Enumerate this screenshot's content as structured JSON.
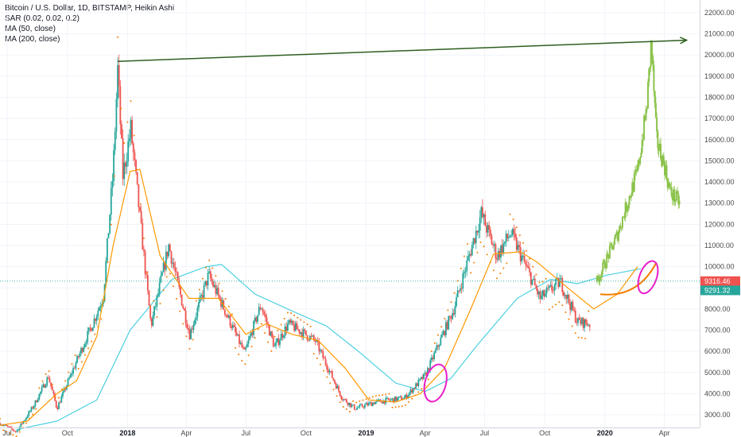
{
  "legend": {
    "title": "Bitcoin / U.S. Dollar, 1D, BITSTAMP, Heikin Ashi",
    "sar": "SAR (0.02, 0.02, 0.2)",
    "ma50": "MA (50, close)",
    "ma200": "MA (200, close)"
  },
  "colors": {
    "up": "#26a69a",
    "down": "#ef5350",
    "projection": "#8bc34a",
    "sar": "#f57c00",
    "ma50": "#ff9800",
    "ma200": "#4dd0e1",
    "trendline": "#2e5e1e",
    "circle": "#e91ec9",
    "price_line": "#26a69a",
    "badge_red": "#ef5350",
    "badge_green": "#26a69a"
  },
  "price_badges": {
    "red": "9316.46",
    "green": "9291.32"
  },
  "chart_data": {
    "type": "candlestick",
    "title": "Bitcoin / U.S. Dollar, 1D, BITSTAMP, Heikin Ashi",
    "x_ticks": [
      "Jul",
      "Oct",
      "2018",
      "Apr",
      "Jul",
      "Oct",
      "2019",
      "Apr",
      "Jul",
      "Oct",
      "2020",
      "Apr"
    ],
    "y_ticks": [
      3000,
      4000,
      5000,
      6000,
      7000,
      8000,
      9000,
      10000,
      11000,
      12000,
      13000,
      14000,
      15000,
      16000,
      17000,
      18000,
      19000,
      20000,
      21000,
      22000
    ],
    "y_tick_labels": [
      "3000.00",
      "4000.00",
      "5000.00",
      "6000.00",
      "7000.00",
      "8000.00",
      "9000.00",
      "10000.00",
      "11000.00",
      "12000.00",
      "13000.00",
      "14000.00",
      "15000.00",
      "16000.00",
      "17000.00",
      "18000.00",
      "19000.00",
      "20000.00",
      "21000.00",
      "22000.00"
    ],
    "ylim": [
      2400,
      22600
    ],
    "x_range": [
      "2017-06-20",
      "2020-05-25"
    ],
    "last_price": 9316.46,
    "price_series": [
      [
        "2017-06-20",
        2600
      ],
      [
        "2017-07-15",
        2200
      ],
      [
        "2017-08-10",
        3400
      ],
      [
        "2017-09-02",
        4800
      ],
      [
        "2017-09-15",
        3300
      ],
      [
        "2017-10-20",
        5900
      ],
      [
        "2017-11-10",
        7400
      ],
      [
        "2017-11-25",
        8600
      ],
      [
        "2017-12-10",
        14500
      ],
      [
        "2017-12-17",
        19300
      ],
      [
        "2017-12-25",
        14300
      ],
      [
        "2018-01-06",
        16500
      ],
      [
        "2018-02-06",
        7200
      ],
      [
        "2018-03-05",
        11000
      ],
      [
        "2018-04-06",
        6800
      ],
      [
        "2018-05-05",
        9600
      ],
      [
        "2018-06-29",
        5900
      ],
      [
        "2018-07-24",
        8200
      ],
      [
        "2018-08-14",
        6200
      ],
      [
        "2018-09-04",
        7300
      ],
      [
        "2018-10-15",
        6500
      ],
      [
        "2018-11-25",
        3800
      ],
      [
        "2018-12-15",
        3300
      ],
      [
        "2019-01-15",
        3600
      ],
      [
        "2019-03-01",
        3800
      ],
      [
        "2019-04-02",
        4900
      ],
      [
        "2019-05-15",
        8000
      ],
      [
        "2019-06-26",
        12500
      ],
      [
        "2019-07-20",
        10500
      ],
      [
        "2019-08-10",
        11600
      ],
      [
        "2019-09-24",
        8500
      ],
      [
        "2019-10-25",
        9300
      ],
      [
        "2019-11-20",
        7400
      ],
      [
        "2019-12-10",
        7300
      ]
    ],
    "projection_series": [
      [
        "2019-12-20",
        9300
      ],
      [
        "2020-01-20",
        11500
      ],
      [
        "2020-02-20",
        14500
      ],
      [
        "2020-03-05",
        17500
      ],
      [
        "2020-03-12",
        20600
      ],
      [
        "2020-03-20",
        16000
      ],
      [
        "2020-04-01",
        14800
      ],
      [
        "2020-04-10",
        13500
      ],
      [
        "2020-04-25",
        13000
      ]
    ],
    "ma50": [
      [
        "2017-06-20",
        2500
      ],
      [
        "2017-08-01",
        2700
      ],
      [
        "2017-09-15",
        4000
      ],
      [
        "2017-10-15",
        4600
      ],
      [
        "2017-11-15",
        6700
      ],
      [
        "2017-12-10",
        11000
      ],
      [
        "2018-01-05",
        14500
      ],
      [
        "2018-01-20",
        14600
      ],
      [
        "2018-02-20",
        10500
      ],
      [
        "2018-04-05",
        8500
      ],
      [
        "2018-05-20",
        8500
      ],
      [
        "2018-07-01",
        6800
      ],
      [
        "2018-08-01",
        7300
      ],
      [
        "2018-09-10",
        6800
      ],
      [
        "2018-10-20",
        6500
      ],
      [
        "2018-11-30",
        5200
      ],
      [
        "2019-01-05",
        3700
      ],
      [
        "2019-02-15",
        3600
      ],
      [
        "2019-03-25",
        4000
      ],
      [
        "2019-05-01",
        5200
      ],
      [
        "2019-06-10",
        8000
      ],
      [
        "2019-07-15",
        10600
      ],
      [
        "2019-08-25",
        10700
      ],
      [
        "2019-09-20",
        10200
      ],
      [
        "2019-11-05",
        9000
      ],
      [
        "2019-12-15",
        8000
      ],
      [
        "2020-01-20",
        8700
      ],
      [
        "2020-02-20",
        10000
      ]
    ],
    "ma200": [
      [
        "2017-07-15",
        2300
      ],
      [
        "2017-09-15",
        2700
      ],
      [
        "2017-11-15",
        3700
      ],
      [
        "2018-01-05",
        7000
      ],
      [
        "2018-03-10",
        9400
      ],
      [
        "2018-05-01",
        10000
      ],
      [
        "2018-05-25",
        10100
      ],
      [
        "2018-07-15",
        8700
      ],
      [
        "2018-09-10",
        7900
      ],
      [
        "2018-11-01",
        7200
      ],
      [
        "2018-12-20",
        6000
      ],
      [
        "2019-02-15",
        4500
      ],
      [
        "2019-04-01",
        4100
      ],
      [
        "2019-05-10",
        4700
      ],
      [
        "2019-06-20",
        6300
      ],
      [
        "2019-08-20",
        8500
      ],
      [
        "2019-10-10",
        9400
      ],
      [
        "2019-11-20",
        9200
      ],
      [
        "2020-01-05",
        9600
      ],
      [
        "2020-02-25",
        9900
      ]
    ],
    "trendline": {
      "start": [
        "2017-12-17",
        19700
      ],
      "end": [
        "2020-05-05",
        20700
      ]
    },
    "annotations": [
      {
        "type": "circle",
        "center": [
          "2019-04-17",
          4500
        ],
        "rx_days": 16,
        "ry_value": 900
      },
      {
        "type": "circle",
        "center": [
          "2020-03-07",
          9500
        ],
        "rx_days": 13,
        "ry_value": 800
      }
    ]
  }
}
